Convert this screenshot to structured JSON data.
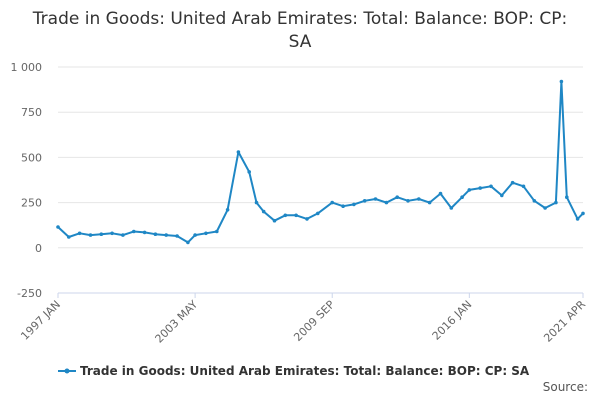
{
  "chart_data": {
    "type": "line",
    "title": "Trade in Goods: United Arab Emirates: Total: Balance: BOP: CP: SA",
    "xlabel": "",
    "ylabel": "",
    "ylim": [
      -250,
      1000
    ],
    "yticks": [
      "-250",
      "0",
      "250",
      "500",
      "750",
      "1 000"
    ],
    "xticks": [
      "1997 JAN",
      "2003 MAY",
      "2009 SEP",
      "2016 JAN",
      "2021 APR"
    ],
    "grid": true,
    "legend_position": "bottom-left",
    "series_color": "#1f87c5",
    "series": [
      {
        "name": "Trade in Goods: United Arab Emirates: Total: Balance: BOP: CP: SA",
        "x": [
          "1997-01",
          "1997-07",
          "1998-01",
          "1998-07",
          "1999-01",
          "1999-07",
          "2000-01",
          "2000-07",
          "2001-01",
          "2001-07",
          "2002-01",
          "2002-07",
          "2003-01",
          "2003-05",
          "2003-11",
          "2004-05",
          "2004-11",
          "2005-05",
          "2005-11",
          "2006-03",
          "2006-07",
          "2007-01",
          "2007-07",
          "2008-01",
          "2008-07",
          "2009-01",
          "2009-09",
          "2010-03",
          "2010-09",
          "2011-03",
          "2011-09",
          "2012-03",
          "2012-09",
          "2013-03",
          "2013-09",
          "2014-03",
          "2014-09",
          "2015-03",
          "2015-09",
          "2016-01",
          "2016-07",
          "2017-01",
          "2017-07",
          "2018-01",
          "2018-07",
          "2019-01",
          "2019-07",
          "2020-01",
          "2020-04",
          "2020-07",
          "2021-01",
          "2021-04"
        ],
        "values": [
          115,
          60,
          80,
          70,
          75,
          80,
          70,
          90,
          85,
          75,
          70,
          65,
          30,
          70,
          80,
          90,
          210,
          530,
          420,
          250,
          200,
          150,
          180,
          180,
          160,
          190,
          250,
          230,
          240,
          260,
          270,
          250,
          280,
          260,
          270,
          250,
          300,
          220,
          280,
          320,
          330,
          340,
          290,
          360,
          340,
          260,
          220,
          250,
          920,
          280,
          160,
          190
        ]
      }
    ]
  },
  "source_label": "Source:"
}
